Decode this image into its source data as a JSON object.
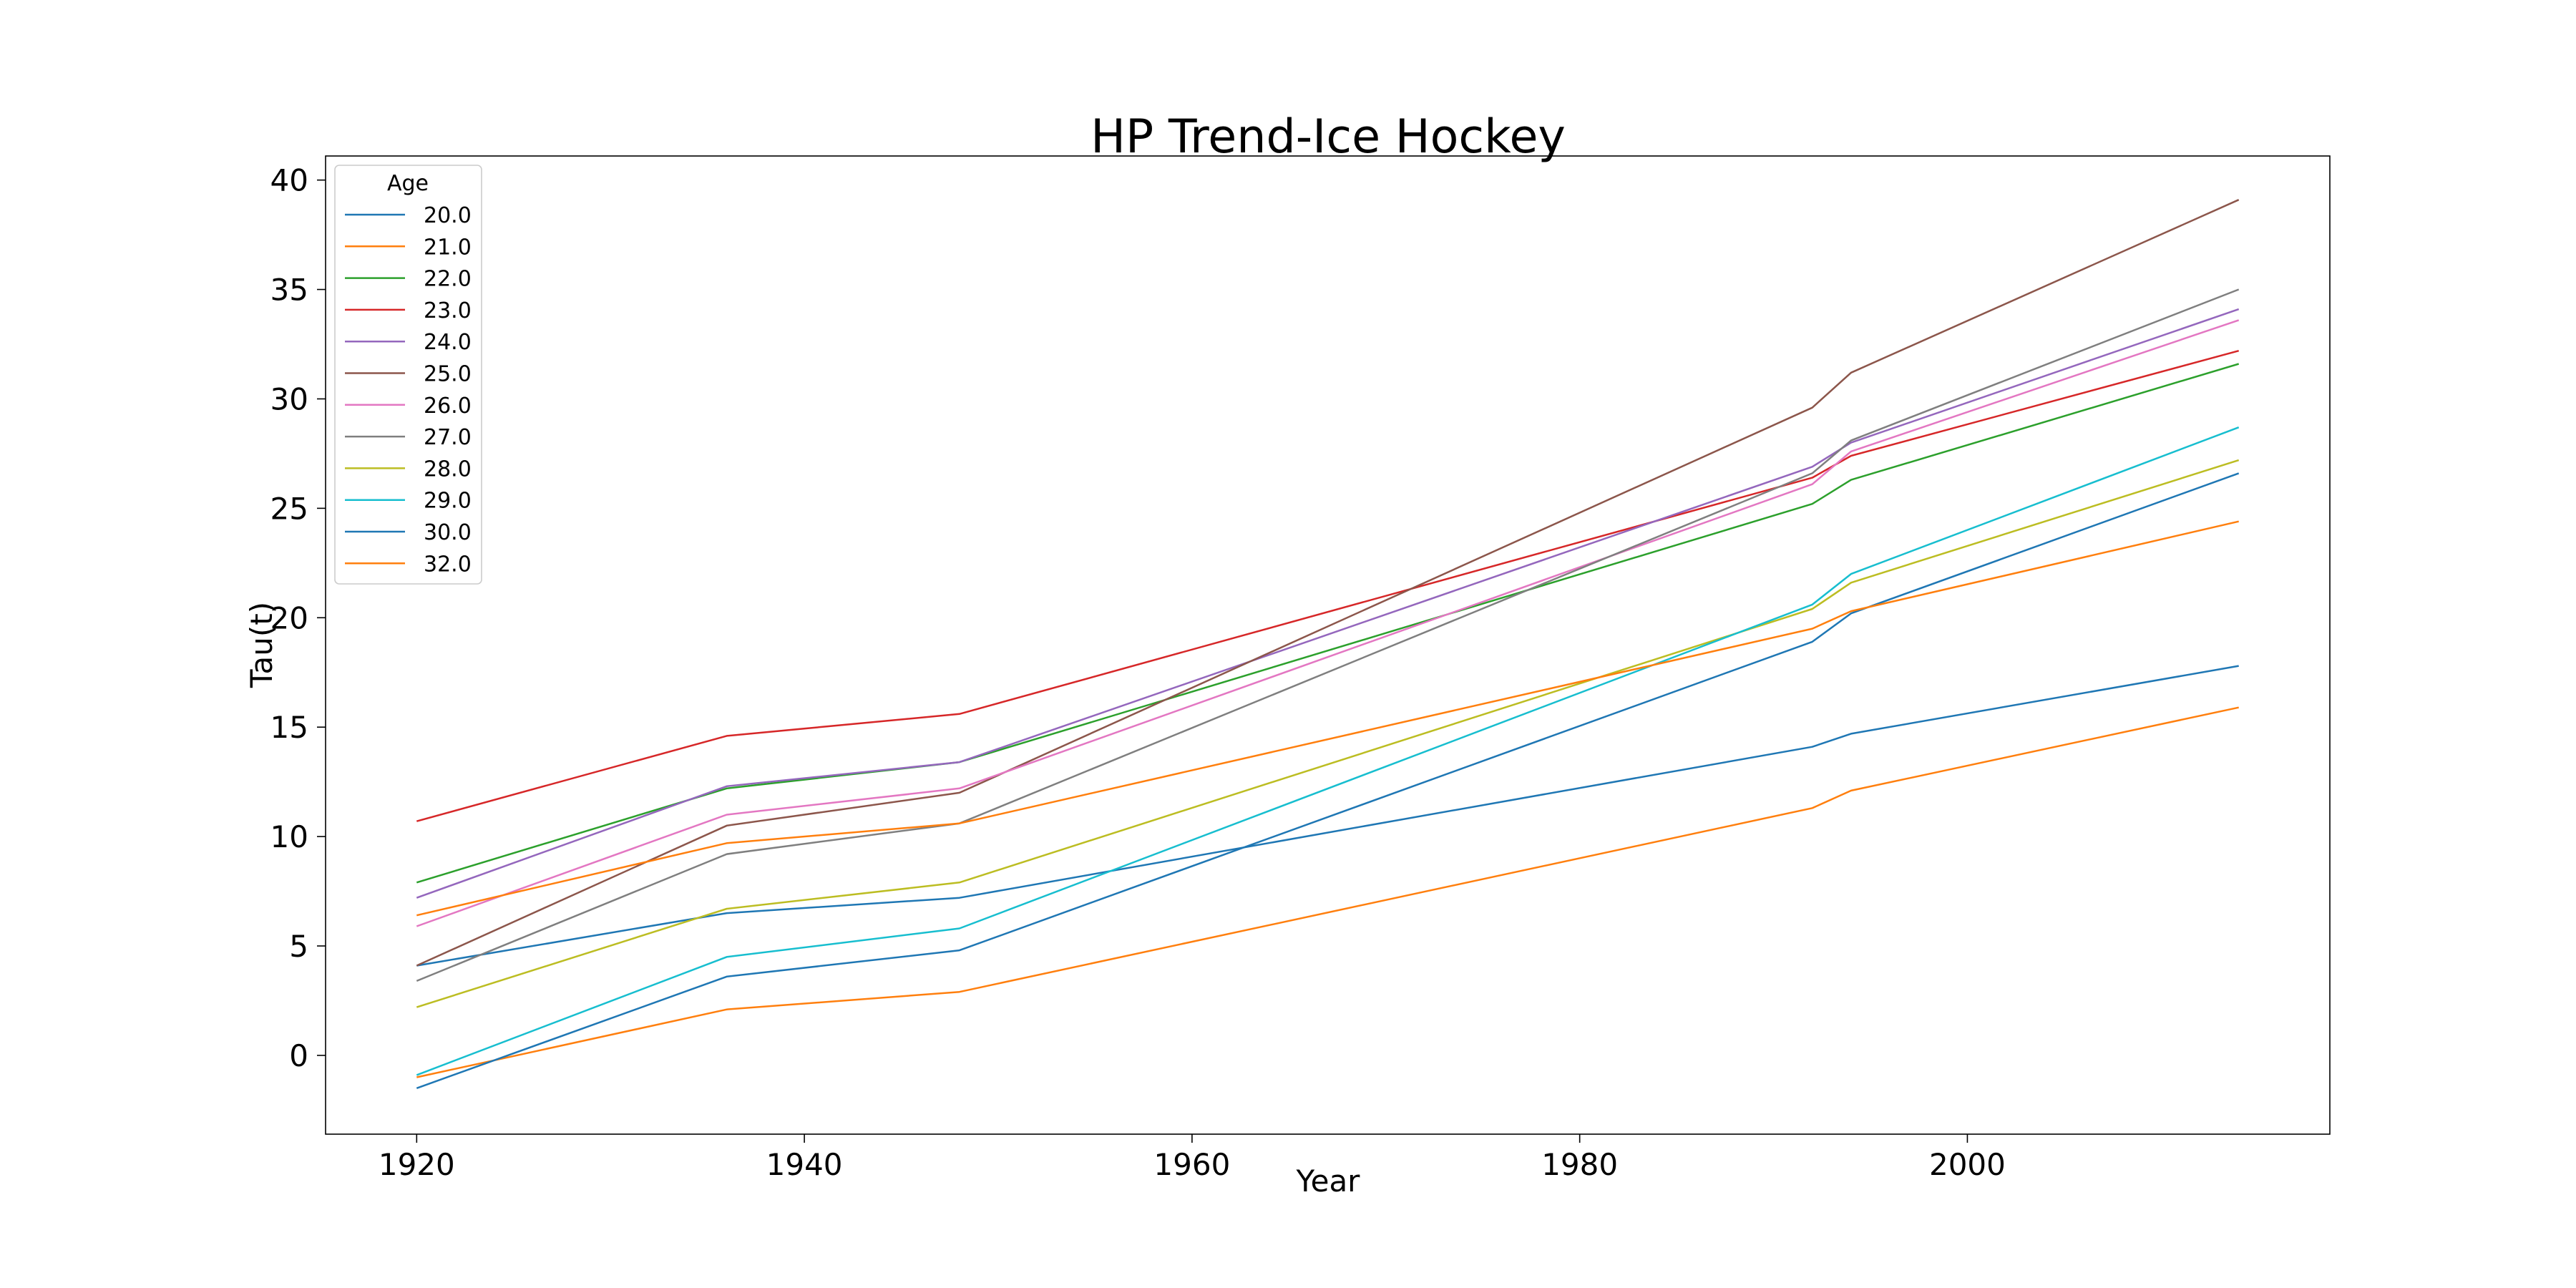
{
  "chart_data": {
    "type": "line",
    "title": "HP Trend-Ice Hockey",
    "xlabel": "Year",
    "ylabel": "Tau(t)",
    "xlim": [
      1915.3,
      2018.7
    ],
    "ylim": [
      -3.6,
      41.1
    ],
    "xticks": [
      1920,
      1940,
      1960,
      1980,
      2000
    ],
    "yticks": [
      0,
      5,
      10,
      15,
      20,
      25,
      30,
      35,
      40
    ],
    "grid": false,
    "legend": {
      "title": "Age",
      "placement": "top-left"
    },
    "x": [
      1920,
      1936,
      1948,
      1992,
      1994,
      2014
    ],
    "series": [
      {
        "name": "20.0",
        "color": "#1f77b4",
        "values": [
          4.1,
          6.5,
          7.2,
          14.1,
          14.7,
          17.8
        ]
      },
      {
        "name": "21.0",
        "color": "#ff7f0e",
        "values": [
          -1.0,
          2.1,
          2.9,
          11.3,
          12.1,
          15.9
        ]
      },
      {
        "name": "22.0",
        "color": "#2ca02c",
        "values": [
          7.9,
          12.2,
          13.4,
          25.2,
          26.3,
          31.6
        ]
      },
      {
        "name": "23.0",
        "color": "#d62728",
        "values": [
          10.7,
          14.6,
          15.6,
          26.4,
          27.4,
          32.2
        ]
      },
      {
        "name": "24.0",
        "color": "#9467bd",
        "values": [
          7.2,
          12.3,
          13.4,
          26.9,
          28.0,
          34.1
        ]
      },
      {
        "name": "25.0",
        "color": "#8c564b",
        "values": [
          4.1,
          10.5,
          12.0,
          29.6,
          31.2,
          39.1
        ]
      },
      {
        "name": "26.0",
        "color": "#e377c2",
        "values": [
          5.9,
          11.0,
          12.2,
          26.1,
          27.6,
          33.6
        ]
      },
      {
        "name": "27.0",
        "color": "#7f7f7f",
        "values": [
          3.4,
          9.2,
          10.6,
          26.6,
          28.1,
          35.0
        ]
      },
      {
        "name": "28.0",
        "color": "#bcbd22",
        "values": [
          2.2,
          6.7,
          7.9,
          20.4,
          21.6,
          27.2
        ]
      },
      {
        "name": "29.0",
        "color": "#17becf",
        "values": [
          -0.9,
          4.5,
          5.8,
          20.6,
          22.0,
          28.7
        ]
      },
      {
        "name": "30.0",
        "color": "#1f77b4",
        "values": [
          -1.5,
          3.6,
          4.8,
          18.9,
          20.2,
          26.6
        ]
      },
      {
        "name": "32.0",
        "color": "#ff7f0e",
        "values": [
          6.4,
          9.7,
          10.6,
          19.5,
          20.3,
          24.4
        ]
      }
    ]
  }
}
